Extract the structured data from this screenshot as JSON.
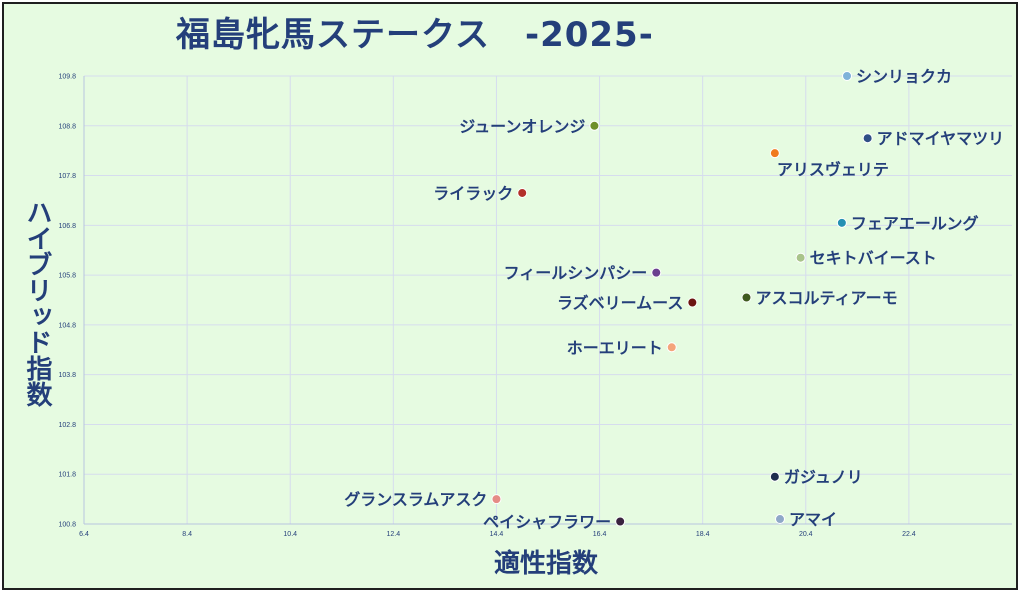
{
  "chart_data": {
    "type": "scatter",
    "title": "福島牝馬ステークス　-2025-",
    "xlabel": "適性指数",
    "ylabel": "ハイブリッド指数",
    "xlim": [
      6.4,
      24.4
    ],
    "ylim": [
      100.8,
      109.8
    ],
    "x_ticks": [
      "6.4",
      "8.4",
      "10.4",
      "12.4",
      "14.4",
      "16.4",
      "18.4",
      "20.4",
      "22.4"
    ],
    "y_ticks": [
      "109.8",
      "108.8",
      "107.8",
      "106.8",
      "105.8",
      "104.8",
      "103.8",
      "102.8",
      "101.8",
      "100.8"
    ],
    "grid": true,
    "points": [
      {
        "name": "シンリョクカ",
        "x": 21.2,
        "y": 109.8,
        "color": "#7fb2d9",
        "label_side": "right"
      },
      {
        "name": "ジューンオレンジ",
        "x": 16.3,
        "y": 108.8,
        "color": "#6e8f2a",
        "label_side": "left"
      },
      {
        "name": "アドマイヤマツリ",
        "x": 21.6,
        "y": 108.55,
        "color": "#2f4f86",
        "label_side": "right"
      },
      {
        "name": "アリスヴェリテ",
        "x": 19.8,
        "y": 108.25,
        "color": "#f07a1e",
        "label_side": "below"
      },
      {
        "name": "ライラック",
        "x": 14.9,
        "y": 107.45,
        "color": "#b3302a",
        "label_side": "left"
      },
      {
        "name": "フェアエールング",
        "x": 21.1,
        "y": 106.85,
        "color": "#2590b3",
        "label_side": "right"
      },
      {
        "name": "セキトバイースト",
        "x": 20.3,
        "y": 106.15,
        "color": "#a9c48a",
        "label_side": "right"
      },
      {
        "name": "フィールシンパシー",
        "x": 17.5,
        "y": 105.85,
        "color": "#6a3f8f",
        "label_side": "left"
      },
      {
        "name": "アスコルティアーモ",
        "x": 19.25,
        "y": 105.35,
        "color": "#3f5a1e",
        "label_side": "right"
      },
      {
        "name": "ラズベリームース",
        "x": 18.2,
        "y": 105.25,
        "color": "#6b1410",
        "label_side": "left"
      },
      {
        "name": "ホーエリート",
        "x": 17.8,
        "y": 104.35,
        "color": "#f4a47a",
        "label_side": "left"
      },
      {
        "name": "ガジュノリ",
        "x": 19.8,
        "y": 101.75,
        "color": "#1f2d4f",
        "label_side": "right"
      },
      {
        "name": "グランスラムアスク",
        "x": 14.4,
        "y": 101.3,
        "color": "#e58b86",
        "label_side": "left"
      },
      {
        "name": "ペイシャフラワー",
        "x": 16.8,
        "y": 100.85,
        "color": "#3a2340",
        "label_side": "left"
      },
      {
        "name": "アマイ",
        "x": 19.9,
        "y": 100.9,
        "color": "#8fa8c8",
        "label_side": "right"
      }
    ]
  }
}
